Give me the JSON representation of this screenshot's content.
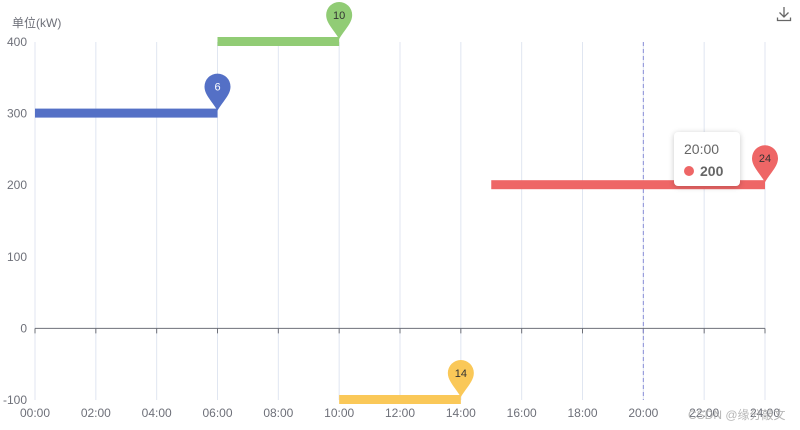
{
  "chart_data": {
    "type": "line",
    "step": "end",
    "unit_label": "单位(kW)",
    "x_ticks": [
      "00:00",
      "02:00",
      "04:00",
      "06:00",
      "08:00",
      "10:00",
      "12:00",
      "14:00",
      "16:00",
      "18:00",
      "20:00",
      "22:00",
      "24:00"
    ],
    "x_range": [
      0,
      24
    ],
    "y_ticks": [
      "400",
      "300",
      "200",
      "100",
      "0",
      "-100"
    ],
    "y_range": [
      -100,
      400
    ],
    "grid": true,
    "segments": [
      {
        "start": 0,
        "end": 6,
        "value": 300,
        "color": "#5470c6",
        "label": "6",
        "label_at": 6
      },
      {
        "start": 6,
        "end": 10,
        "value": 400,
        "color": "#91cc75",
        "label": "10",
        "label_at": 10
      },
      {
        "start": 10,
        "end": 14,
        "value": -100,
        "color": "#fac858",
        "label": "14",
        "label_at": 14
      },
      {
        "start": 15,
        "end": 24,
        "value": 200,
        "color": "#ee6666",
        "label": "24",
        "label_at": 24
      }
    ],
    "cursor_x": 20
  },
  "tooltip": {
    "title": "20:00",
    "value": "200",
    "color": "#ee6666"
  },
  "toolbox": {
    "icon": "download-icon"
  },
  "watermark": "CSDN @缘分敲文"
}
